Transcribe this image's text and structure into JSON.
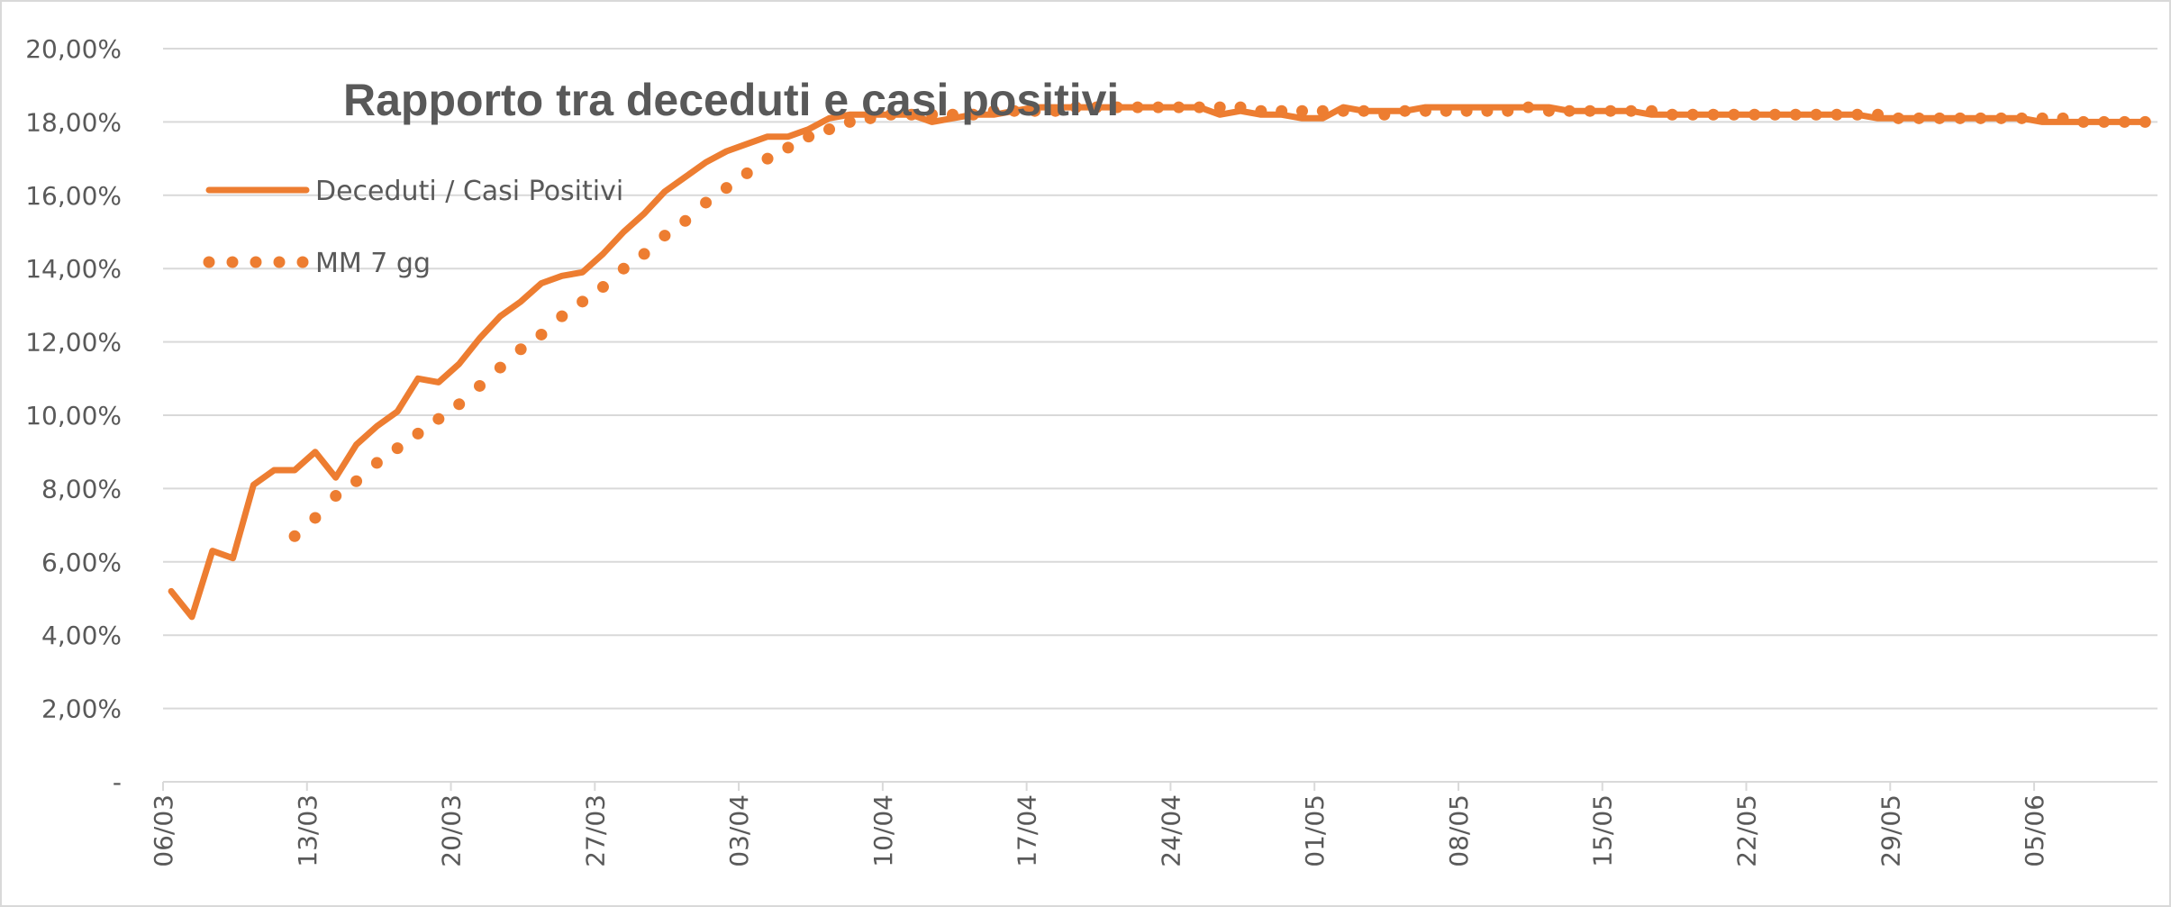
{
  "chart_data": {
    "type": "line",
    "title": "Rapporto tra deceduti e casi positivi",
    "categories": [
      "06/03",
      null,
      null,
      null,
      null,
      null,
      null,
      "13/03",
      null,
      null,
      null,
      null,
      null,
      null,
      "20/03",
      null,
      null,
      null,
      null,
      null,
      null,
      "27/03",
      null,
      null,
      null,
      null,
      null,
      null,
      "03/04",
      null,
      null,
      null,
      null,
      null,
      null,
      "10/04",
      null,
      null,
      null,
      null,
      null,
      null,
      "17/04",
      null,
      null,
      null,
      null,
      null,
      null,
      "24/04",
      null,
      null,
      null,
      null,
      null,
      null,
      "01/05",
      null,
      null,
      null,
      null,
      null,
      null,
      "08/05",
      null,
      null,
      null,
      null,
      null,
      null,
      "15/05",
      null,
      null,
      null,
      null,
      null,
      null,
      "22/05",
      null,
      null,
      null,
      null,
      null,
      null,
      "29/05",
      null,
      null,
      null,
      null,
      null,
      null,
      "05/06",
      null,
      null,
      null,
      null,
      null
    ],
    "series": [
      {
        "name": "Deceduti / Casi Positivi",
        "color": "#ed7d31",
        "style": "solid",
        "values": [
          5.2,
          4.5,
          6.3,
          6.1,
          8.1,
          8.5,
          8.5,
          9.0,
          8.3,
          9.2,
          9.7,
          10.1,
          11.0,
          10.9,
          11.4,
          12.1,
          12.7,
          13.1,
          13.6,
          13.8,
          13.9,
          14.4,
          15.0,
          15.5,
          16.1,
          16.5,
          16.9,
          17.2,
          17.4,
          17.6,
          17.6,
          17.8,
          18.1,
          18.2,
          18.2,
          18.2,
          18.2,
          18.0,
          18.1,
          18.2,
          18.2,
          18.3,
          18.4,
          18.4,
          18.4,
          18.4,
          18.4,
          18.4,
          18.4,
          18.4,
          18.4,
          18.2,
          18.3,
          18.2,
          18.2,
          18.1,
          18.1,
          18.4,
          18.3,
          18.3,
          18.3,
          18.4,
          18.4,
          18.4,
          18.4,
          18.4,
          18.4,
          18.4,
          18.3,
          18.3,
          18.3,
          18.3,
          18.2,
          18.2,
          18.2,
          18.2,
          18.2,
          18.2,
          18.2,
          18.2,
          18.2,
          18.2,
          18.2,
          18.1,
          18.1,
          18.1,
          18.1,
          18.1,
          18.1,
          18.1,
          18.1,
          18.0,
          18.0,
          18.0,
          18.0,
          18.0,
          18.0
        ]
      },
      {
        "name": "MM 7 gg",
        "color": "#ed7d31",
        "style": "dotted",
        "values": [
          null,
          null,
          null,
          null,
          null,
          null,
          6.7,
          7.2,
          7.8,
          8.2,
          8.7,
          9.1,
          9.5,
          9.9,
          10.3,
          10.8,
          11.3,
          11.8,
          12.2,
          12.7,
          13.1,
          13.5,
          14.0,
          14.4,
          14.9,
          15.3,
          15.8,
          16.2,
          16.6,
          17.0,
          17.3,
          17.6,
          17.8,
          18.0,
          18.1,
          18.2,
          18.2,
          18.2,
          18.2,
          18.2,
          18.3,
          18.3,
          18.3,
          18.3,
          18.4,
          18.4,
          18.4,
          18.4,
          18.4,
          18.4,
          18.4,
          18.4,
          18.4,
          18.3,
          18.3,
          18.3,
          18.3,
          18.3,
          18.3,
          18.2,
          18.3,
          18.3,
          18.3,
          18.3,
          18.3,
          18.3,
          18.4,
          18.3,
          18.3,
          18.3,
          18.3,
          18.3,
          18.3,
          18.2,
          18.2,
          18.2,
          18.2,
          18.2,
          18.2,
          18.2,
          18.2,
          18.2,
          18.2,
          18.2,
          18.1,
          18.1,
          18.1,
          18.1,
          18.1,
          18.1,
          18.1,
          18.1,
          18.1,
          18.0,
          18.0,
          18.0,
          18.0
        ]
      }
    ],
    "ylim": [
      0,
      20
    ],
    "yticks": [
      {
        "value": 0,
        "label": "-"
      },
      {
        "value": 2,
        "label": "2,00%"
      },
      {
        "value": 4,
        "label": "4,00%"
      },
      {
        "value": 6,
        "label": "6,00%"
      },
      {
        "value": 8,
        "label": "8,00%"
      },
      {
        "value": 10,
        "label": "10,00%"
      },
      {
        "value": 12,
        "label": "12,00%"
      },
      {
        "value": 14,
        "label": "14,00%"
      },
      {
        "value": 16,
        "label": "16,00%"
      },
      {
        "value": 18,
        "label": "18,00%"
      },
      {
        "value": 20,
        "label": "20,00%"
      }
    ],
    "grid": true,
    "legend": "top-left"
  }
}
